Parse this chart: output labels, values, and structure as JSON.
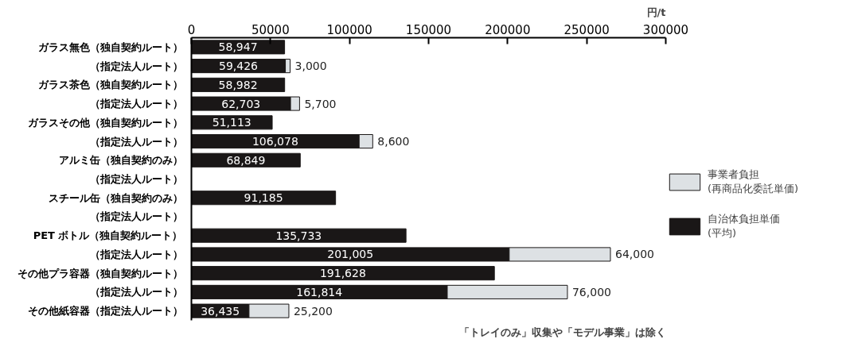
{
  "chart_data": {
    "type": "bar",
    "orientation": "horizontal",
    "stacked": true,
    "xlabel": "円/t",
    "categories": [
      "ガラス無色（独自契約ルート）",
      "（指定法人ルート）",
      "ガラス茶色（独自契約ルート）",
      "（指定法人ルート）",
      "ガラスその他（独自契約ルート）",
      "（指定法人ルート）",
      "アルミ缶（独自契約のみ）",
      "（指定法人ルート）",
      "スチール缶（独自契約のみ）",
      "（指定法人ルート）",
      "PET ボトル（独自契約ルート）",
      "（指定法人ルート）",
      "その他プラ容器（独自契約ルート）",
      "（指定法人ルート）",
      "その他紙容器（指定法人ルート）"
    ],
    "series": [
      {
        "name": "自治体負担単価\n(平均)",
        "color": "#1a1717",
        "values": [
          58947,
          59426,
          58982,
          62703,
          51113,
          106078,
          68849,
          null,
          91185,
          null,
          135733,
          201005,
          191628,
          161814,
          36435
        ],
        "value_labels": [
          "58,947",
          "59,426",
          "58,982",
          "62,703",
          "51,113",
          "106,078",
          "68,849",
          null,
          "91,185",
          null,
          "135,733",
          "201,005",
          "191,628",
          "161,814",
          "36,435"
        ]
      },
      {
        "name": "事業者負担\n(再商品化委託単価)",
        "color": "#dde1e4",
        "values": [
          null,
          3000,
          null,
          5700,
          null,
          8600,
          null,
          null,
          null,
          null,
          null,
          64000,
          null,
          76000,
          25200
        ],
        "value_labels": [
          null,
          "3,000",
          null,
          "5,700",
          null,
          "8,600",
          null,
          null,
          null,
          null,
          null,
          "64,000",
          null,
          "76,000",
          "25,200"
        ]
      }
    ],
    "xlim": [
      0,
      300000
    ],
    "xticks": [
      0,
      50000,
      100000,
      150000,
      200000,
      250000,
      300000
    ],
    "grid": false,
    "legend": "right",
    "annotations": [
      "「トレイのみ」収集や「モデル事業」は除く"
    ]
  }
}
